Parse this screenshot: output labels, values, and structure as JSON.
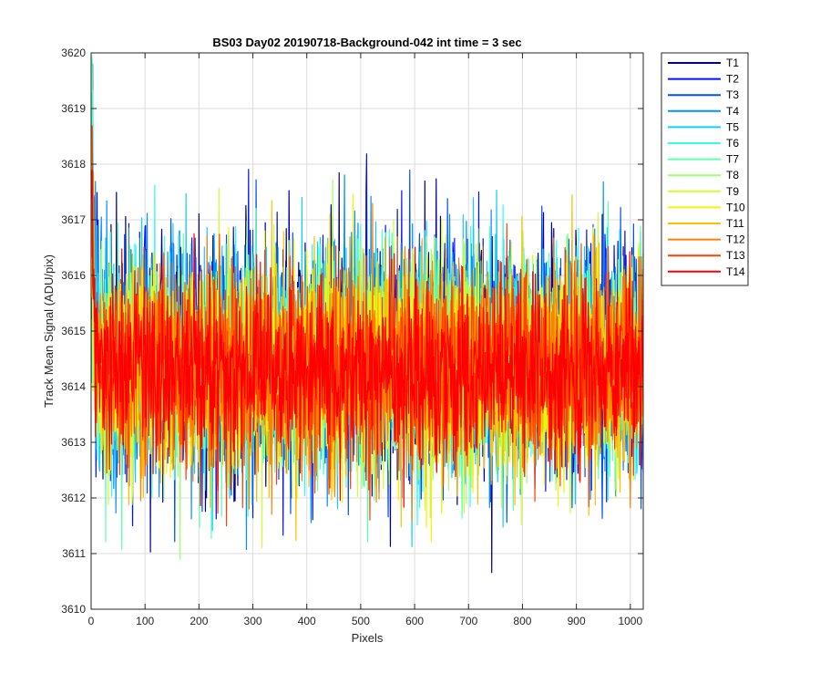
{
  "chart_data": {
    "type": "line",
    "title": "BS03 Day02 20190718-Background-042 int time = 3 sec",
    "xlabel": "Pixels",
    "ylabel": "Track Mean Signal (ADU/pix)",
    "xlim": [
      0,
      1024
    ],
    "ylim": [
      3610,
      3620
    ],
    "xticks": [
      0,
      100,
      200,
      300,
      400,
      500,
      600,
      700,
      800,
      900,
      1000
    ],
    "yticks": [
      3610,
      3611,
      3612,
      3613,
      3614,
      3615,
      3616,
      3617,
      3618,
      3619,
      3620
    ],
    "grid": true,
    "legend_position": "outside-top-right",
    "n_points": 1024,
    "series": [
      {
        "name": "T1",
        "color": "#00008f",
        "mean": 3614.6,
        "spread": 1.05
      },
      {
        "name": "T2",
        "color": "#0010ff",
        "mean": 3614.6,
        "spread": 1.05
      },
      {
        "name": "T3",
        "color": "#0050ff",
        "mean": 3614.5,
        "spread": 1.0
      },
      {
        "name": "T4",
        "color": "#0090ff",
        "mean": 3614.5,
        "spread": 1.0
      },
      {
        "name": "T5",
        "color": "#10cfff",
        "mean": 3614.4,
        "spread": 1.0
      },
      {
        "name": "T6",
        "color": "#30ffef",
        "mean": 3614.4,
        "spread": 0.95
      },
      {
        "name": "T7",
        "color": "#60ffb0",
        "mean": 3614.4,
        "spread": 0.95
      },
      {
        "name": "T8",
        "color": "#9fff70",
        "mean": 3614.4,
        "spread": 0.95
      },
      {
        "name": "T9",
        "color": "#cfff30",
        "mean": 3614.3,
        "spread": 0.95
      },
      {
        "name": "T10",
        "color": "#ffef00",
        "mean": 3614.3,
        "spread": 0.95
      },
      {
        "name": "T11",
        "color": "#ffbf00",
        "mean": 3614.3,
        "spread": 0.95
      },
      {
        "name": "T12",
        "color": "#ff8000",
        "mean": 3614.3,
        "spread": 0.9
      },
      {
        "name": "T13",
        "color": "#ff4000",
        "mean": 3614.3,
        "spread": 0.85
      },
      {
        "name": "T14",
        "color": "#ff0000",
        "mean": 3614.3,
        "spread": 0.8
      }
    ]
  }
}
